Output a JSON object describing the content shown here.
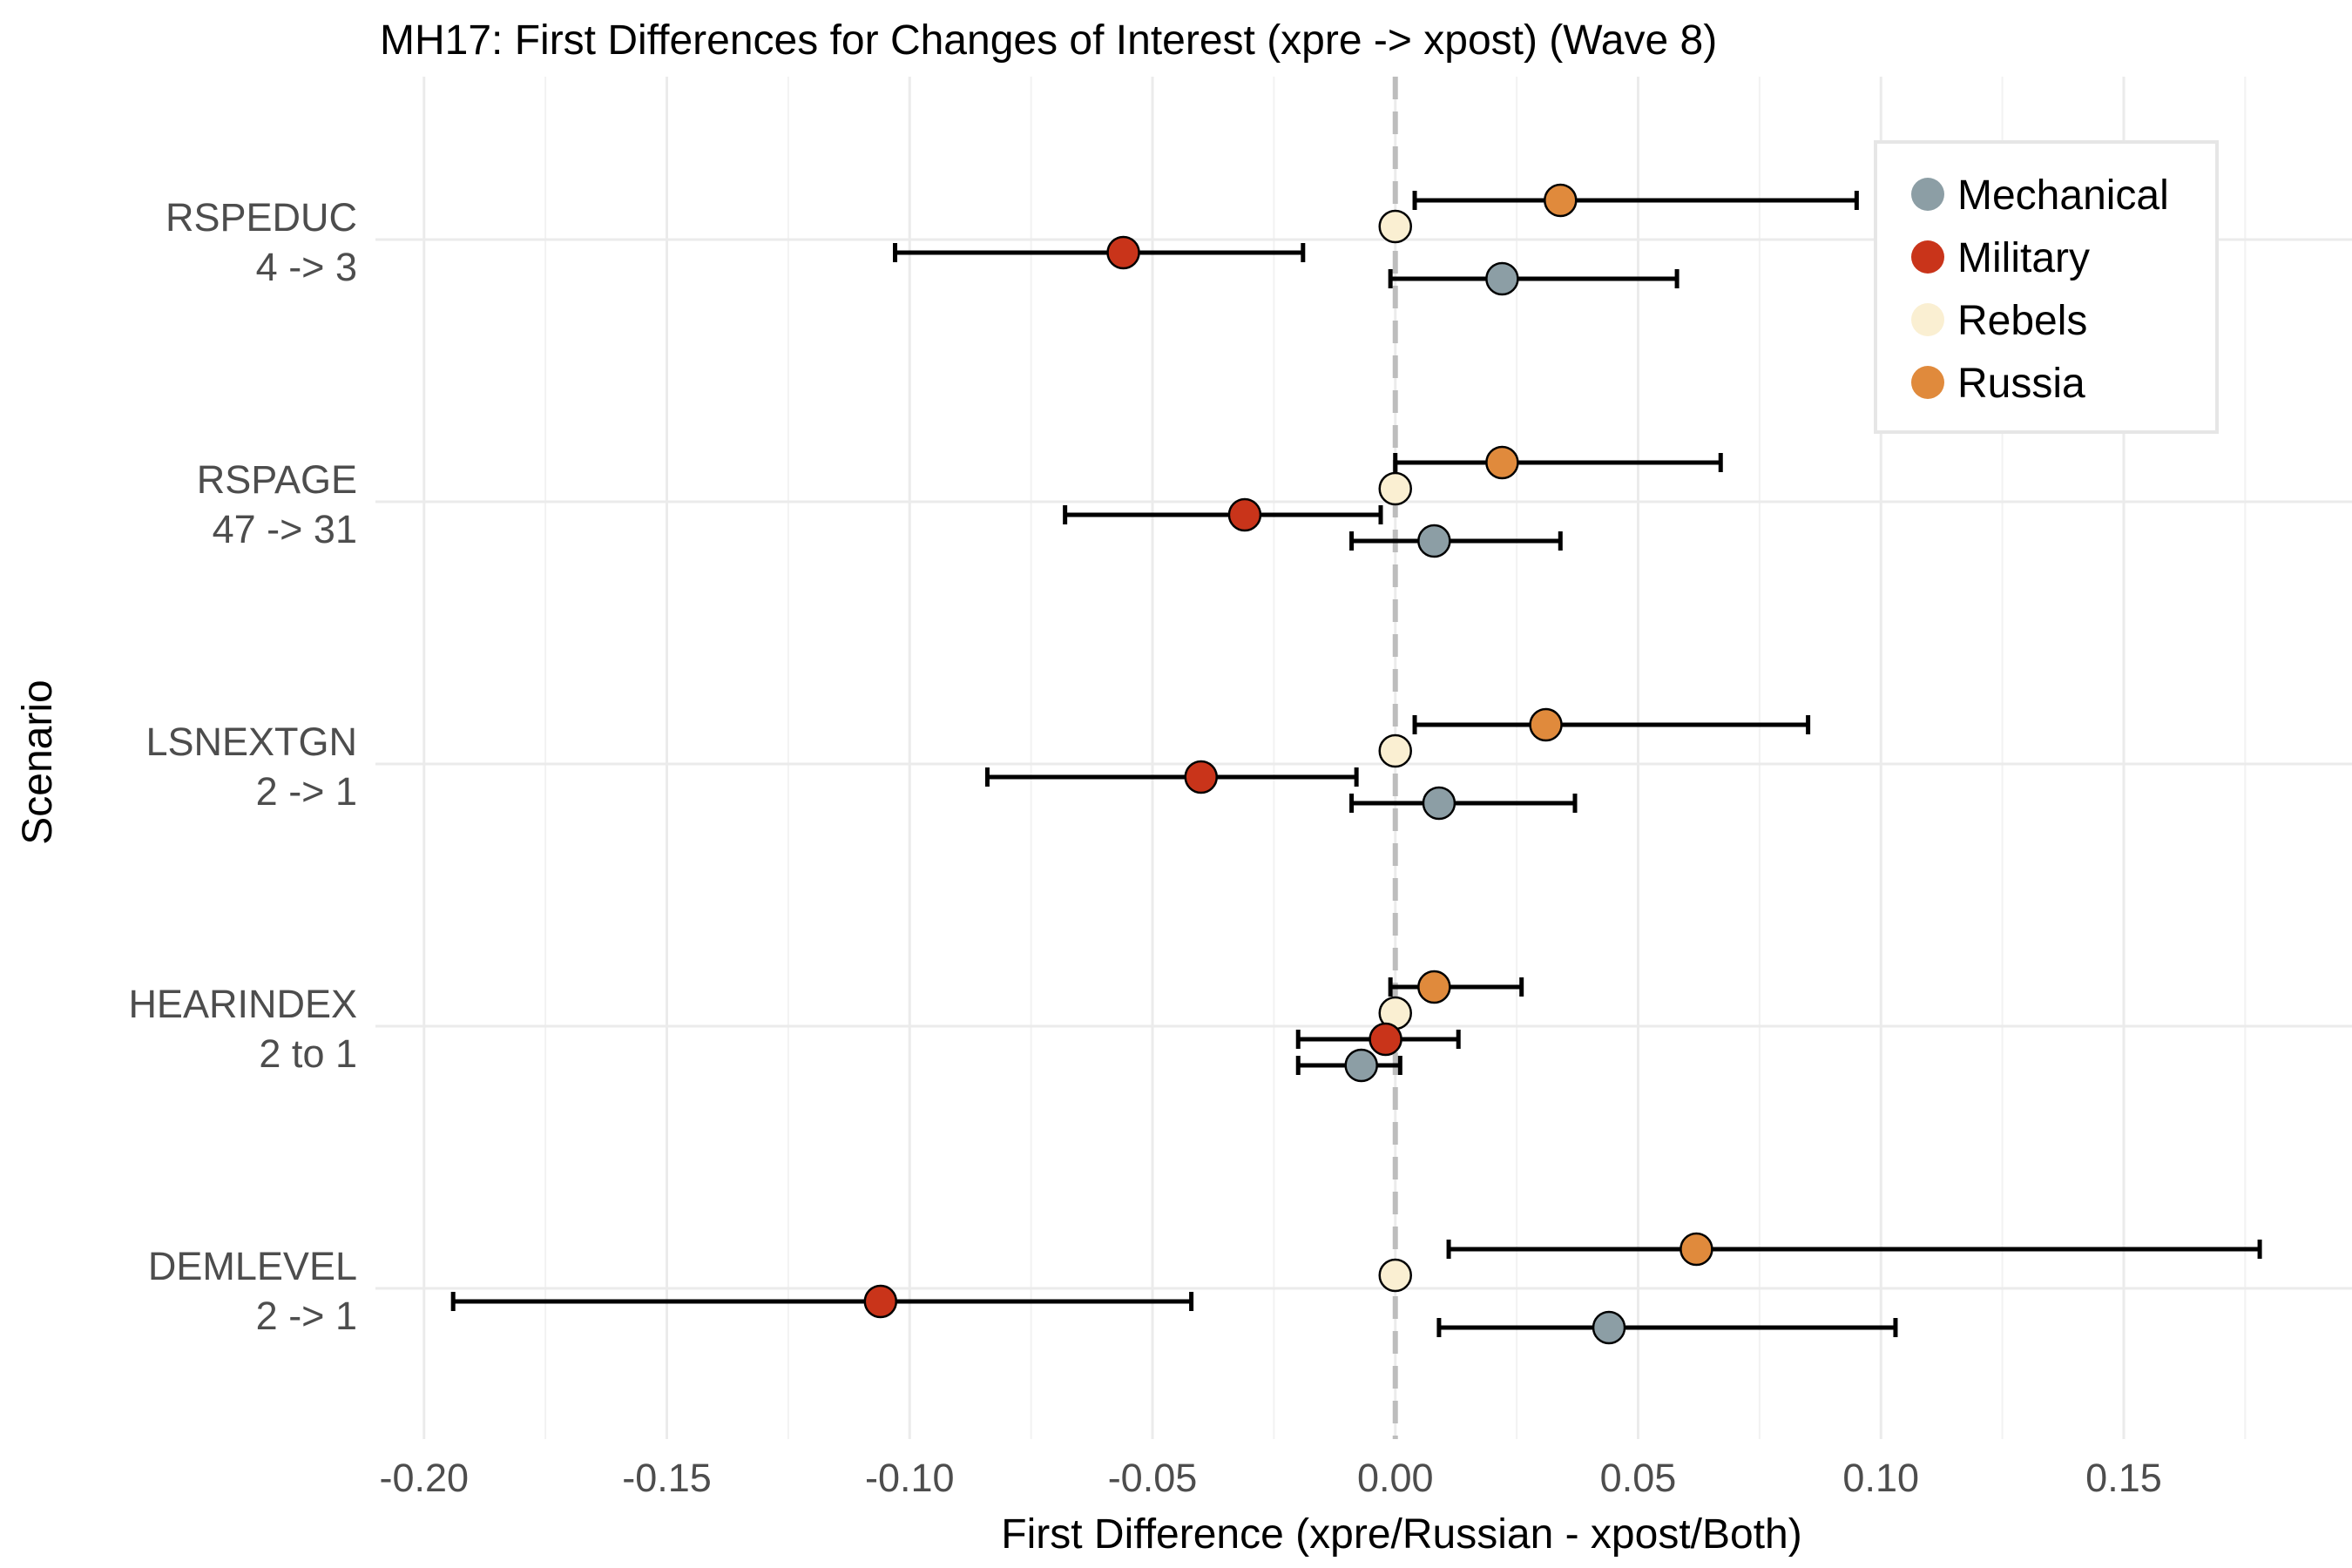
{
  "chart_data": {
    "type": "dot-errorbar",
    "title": "MH17: First Differences for Changes of Interest (xpre -> xpost) (Wave 8)",
    "xlabel": "First Difference (xpre/Russian - xpost/Both)",
    "ylabel": "Scenario",
    "xlim": [
      -0.21,
      0.197
    ],
    "x_ticks": [
      -0.2,
      -0.15,
      -0.1,
      -0.05,
      0.0,
      0.05,
      0.1,
      0.15
    ],
    "x_tick_labels": [
      "-0.20",
      "-0.15",
      "-0.10",
      "-0.05",
      "0.00",
      "0.05",
      "0.10",
      "0.15"
    ],
    "reference_line": 0.0,
    "grid": true,
    "legend_position": "top-right",
    "series": [
      {
        "name": "Mechanical",
        "color": "#8c9ea5"
      },
      {
        "name": "Military",
        "color": "#c9341a"
      },
      {
        "name": "Rebels",
        "color": "#faefd2"
      },
      {
        "name": "Russia",
        "color": "#e08a3c"
      }
    ],
    "categories": [
      {
        "name": "RSPEDUC",
        "change": "4 -> 3",
        "points": [
          {
            "series": "Russia",
            "value": 0.034,
            "lower": 0.004,
            "upper": 0.095
          },
          {
            "series": "Rebels",
            "value": 0.0
          },
          {
            "series": "Military",
            "value": -0.056,
            "lower": -0.103,
            "upper": -0.019
          },
          {
            "series": "Mechanical",
            "value": 0.022,
            "lower": -0.001,
            "upper": 0.058
          }
        ]
      },
      {
        "name": "RSPAGE",
        "change": "47 -> 31",
        "points": [
          {
            "series": "Russia",
            "value": 0.022,
            "lower": 0.0,
            "upper": 0.067
          },
          {
            "series": "Rebels",
            "value": 0.0
          },
          {
            "series": "Military",
            "value": -0.031,
            "lower": -0.068,
            "upper": -0.003
          },
          {
            "series": "Mechanical",
            "value": 0.008,
            "lower": -0.009,
            "upper": 0.034
          }
        ]
      },
      {
        "name": "LSNEXTGN",
        "change": "2 -> 1",
        "points": [
          {
            "series": "Russia",
            "value": 0.031,
            "lower": 0.004,
            "upper": 0.085
          },
          {
            "series": "Rebels",
            "value": 0.0
          },
          {
            "series": "Military",
            "value": -0.04,
            "lower": -0.084,
            "upper": -0.008
          },
          {
            "series": "Mechanical",
            "value": 0.009,
            "lower": -0.009,
            "upper": 0.037
          }
        ]
      },
      {
        "name": "HEARINDEX",
        "change": "2 to 1",
        "points": [
          {
            "series": "Russia",
            "value": 0.008,
            "lower": -0.001,
            "upper": 0.026
          },
          {
            "series": "Rebels",
            "value": 0.0
          },
          {
            "series": "Military",
            "value": -0.002,
            "lower": -0.02,
            "upper": 0.013
          },
          {
            "series": "Mechanical",
            "value": -0.007,
            "lower": -0.02,
            "upper": 0.001
          }
        ]
      },
      {
        "name": "DEMLEVEL",
        "change": "2 -> 1",
        "points": [
          {
            "series": "Russia",
            "value": 0.062,
            "lower": 0.011,
            "upper": 0.178
          },
          {
            "series": "Rebels",
            "value": 0.0
          },
          {
            "series": "Military",
            "value": -0.106,
            "lower": -0.194,
            "upper": -0.042
          },
          {
            "series": "Mechanical",
            "value": 0.044,
            "lower": 0.009,
            "upper": 0.103
          }
        ]
      }
    ]
  }
}
